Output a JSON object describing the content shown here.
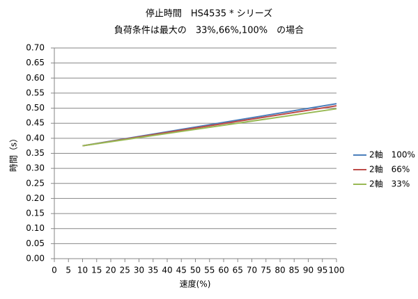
{
  "chart_data": {
    "type": "line",
    "title": "停止時間　HS4535 * シリーズ",
    "subtitle": "負荷条件は最大の　33%,66%,100%　の場合",
    "x_label": "速度(%)",
    "y_label": "時間（s）",
    "x": [
      10,
      100
    ],
    "series": [
      {
        "name": "2軸　100%",
        "color": "#4a7ebb",
        "values": [
          0.375,
          0.515
        ]
      },
      {
        "name": "2軸　66%",
        "color": "#be4b48",
        "values": [
          0.375,
          0.508
        ]
      },
      {
        "name": "2軸　33%",
        "color": "#98b954",
        "values": [
          0.375,
          0.498
        ]
      }
    ],
    "xlim": [
      0,
      100
    ],
    "xticks": [
      0,
      5,
      10,
      15,
      20,
      25,
      30,
      35,
      40,
      45,
      50,
      55,
      60,
      65,
      70,
      75,
      80,
      85,
      90,
      95,
      100
    ],
    "ylim": [
      0,
      0.7
    ],
    "yticks": [
      {
        "value": 0,
        "label": "0.00"
      },
      {
        "value": 0.05,
        "label": "0.05"
      },
      {
        "value": 0.1,
        "label": "0.10"
      },
      {
        "value": 0.15,
        "label": "0.15"
      },
      {
        "value": 0.2,
        "label": "0.20"
      },
      {
        "value": 0.25,
        "label": "0.25"
      },
      {
        "value": 0.3,
        "label": "0.30"
      },
      {
        "value": 0.35,
        "label": "0.35"
      },
      {
        "value": 0.4,
        "label": "0.40"
      },
      {
        "value": 0.45,
        "label": "0.45"
      },
      {
        "value": 0.5,
        "label": "0.50"
      },
      {
        "value": 0.55,
        "label": "0.55"
      },
      {
        "value": 0.6,
        "label": "0.60"
      },
      {
        "value": 0.65,
        "label": "0.65"
      },
      {
        "value": 0.7,
        "label": "0.70"
      }
    ],
    "grid": true,
    "legend": "right"
  }
}
